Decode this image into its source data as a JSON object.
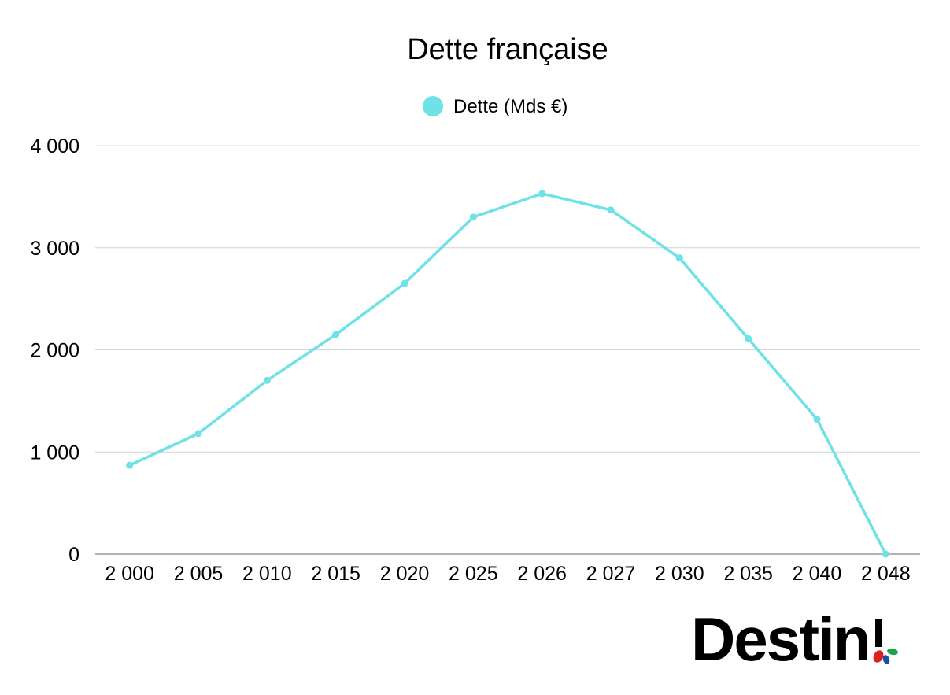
{
  "chart_data": {
    "type": "line",
    "title": "Dette française",
    "xlabel": "",
    "ylabel": "",
    "categories": [
      "2 000",
      "2 005",
      "2 010",
      "2 015",
      "2 020",
      "2 025",
      "2 026",
      "2 027",
      "2 030",
      "2 035",
      "2 040",
      "2 048"
    ],
    "series": [
      {
        "name": "Dette (Mds €)",
        "color": "#6ee2e6",
        "values": [
          870,
          1180,
          1700,
          2150,
          2650,
          3300,
          3530,
          3370,
          2900,
          2110,
          1320,
          0
        ]
      }
    ],
    "ylim": [
      0,
      4000
    ],
    "yticks": [
      0,
      1000,
      2000,
      3000,
      4000
    ],
    "ytick_labels": [
      "0",
      "1 000",
      "2 000",
      "3 000",
      "4 000"
    ],
    "grid": true,
    "legend_position": "top-center"
  },
  "logo": {
    "text": "Destin",
    "colors": [
      "#e02020",
      "#1fa34a",
      "#1f4fa0"
    ]
  }
}
